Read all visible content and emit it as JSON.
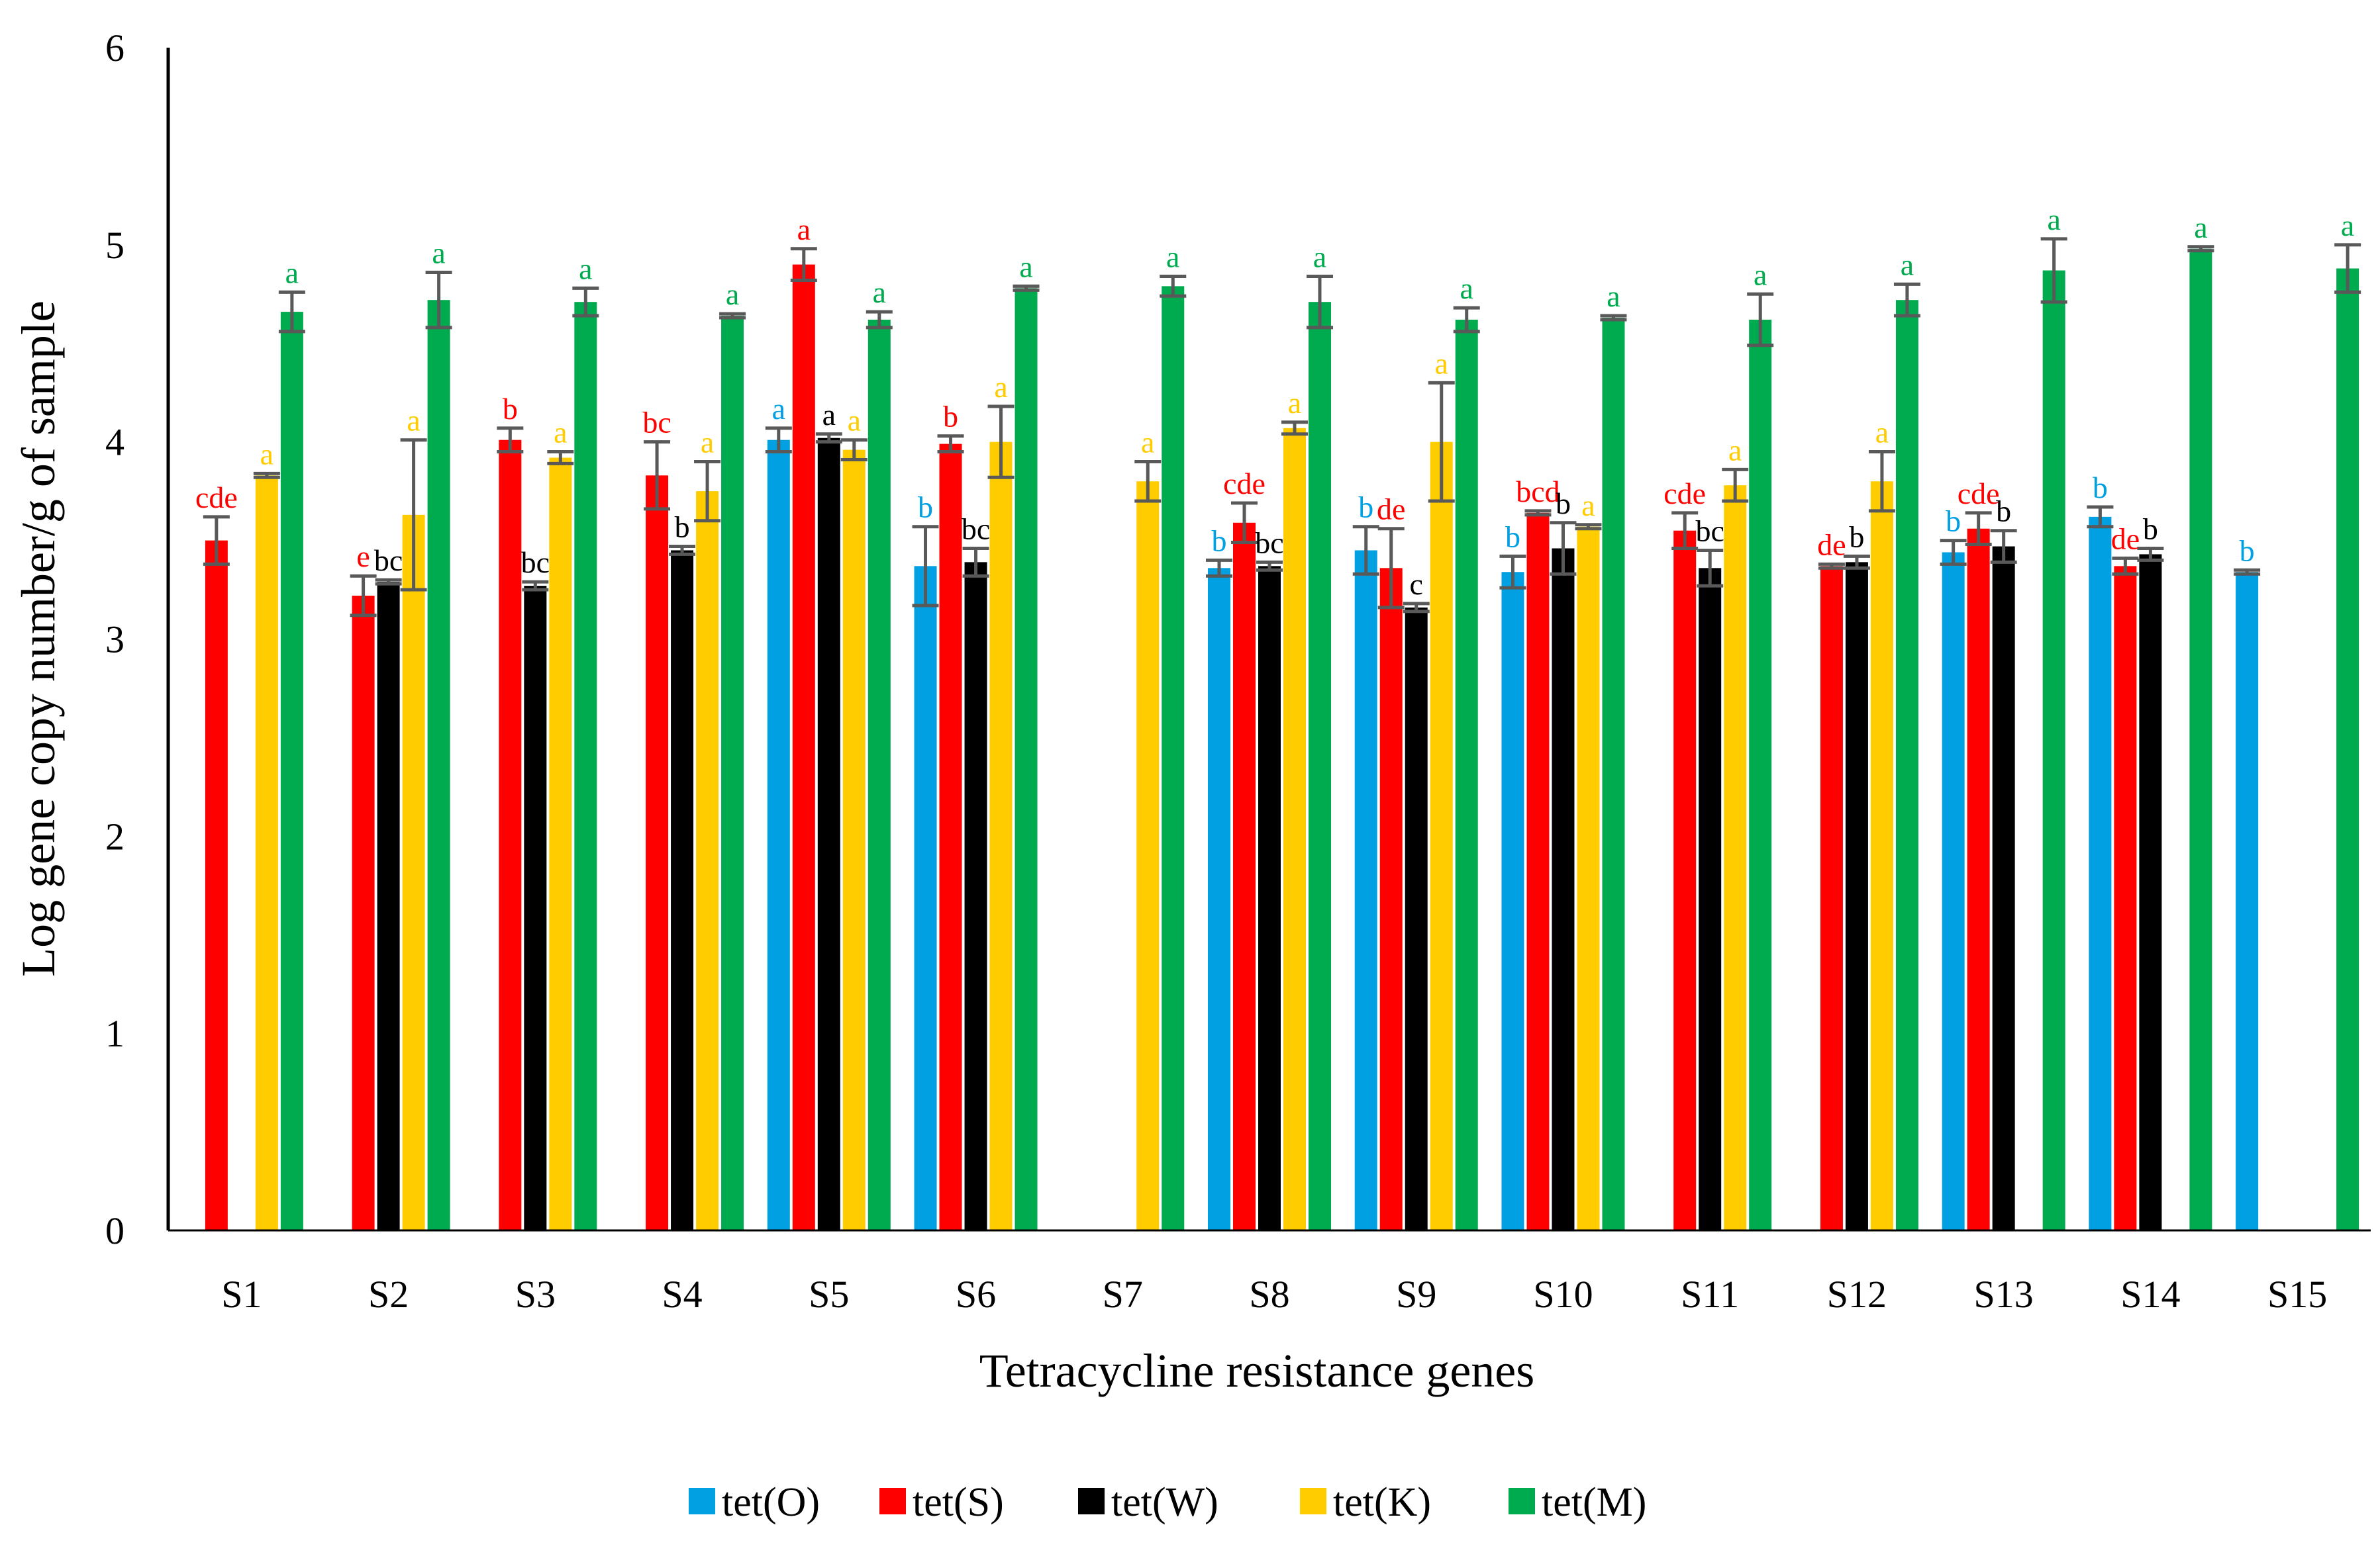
{
  "chart_data": {
    "type": "bar",
    "title": "",
    "xlabel": "Tetracycline resistance genes",
    "ylabel": "Log gene copy number/g of sample",
    "ylim": [
      0,
      6
    ],
    "yticks": [
      "0",
      "1",
      "2",
      "3",
      "4",
      "5",
      "6"
    ],
    "grid": false,
    "legend_position": "bottom",
    "categories": [
      "S1",
      "S2",
      "S3",
      "S4",
      "S5",
      "S6",
      "S7",
      "S8",
      "S9",
      "S10",
      "S11",
      "S12",
      "S13",
      "S14",
      "S15"
    ],
    "series": [
      {
        "name": "tet(O)",
        "color": "#00A0E3",
        "values": [
          null,
          null,
          null,
          null,
          4.01,
          3.37,
          null,
          3.36,
          3.45,
          3.34,
          null,
          null,
          3.44,
          3.62,
          3.34
        ],
        "errors": [
          null,
          null,
          null,
          null,
          0.06,
          0.2,
          null,
          0.04,
          0.12,
          0.08,
          null,
          null,
          0.06,
          0.05,
          0.01
        ],
        "sig_labels": [
          "",
          "",
          "",
          "",
          "a",
          "b",
          "",
          "b",
          "b",
          "b",
          "",
          "",
          "b",
          "b",
          "b"
        ]
      },
      {
        "name": "tet(S)",
        "color": "#FF0000",
        "values": [
          3.5,
          3.22,
          4.01,
          3.83,
          4.9,
          3.99,
          null,
          3.59,
          3.36,
          3.64,
          3.55,
          3.37,
          3.56,
          3.37,
          null
        ],
        "errors": [
          0.12,
          0.1,
          0.06,
          0.17,
          0.08,
          0.04,
          null,
          0.1,
          0.2,
          0.01,
          0.09,
          0.01,
          0.08,
          0.04,
          null
        ],
        "sig_labels": [
          "cde",
          "e",
          "b",
          "bc",
          "a",
          "b",
          "",
          "cde",
          "de",
          "bcd",
          "cde",
          "de",
          "cde",
          "de",
          ""
        ]
      },
      {
        "name": "tet(W)",
        "color": "#000000",
        "values": [
          null,
          3.29,
          3.27,
          3.45,
          4.02,
          3.39,
          null,
          3.37,
          3.16,
          3.46,
          3.36,
          3.39,
          3.47,
          3.43,
          null
        ],
        "errors": [
          null,
          0.01,
          0.02,
          0.02,
          0.02,
          0.07,
          null,
          0.02,
          0.02,
          0.13,
          0.09,
          0.03,
          0.08,
          0.03,
          null
        ],
        "sig_labels": [
          "",
          "bc",
          "bc",
          "b",
          "a",
          "bc",
          "",
          "bc",
          "c",
          "b",
          "bc",
          "b",
          "b",
          "b",
          ""
        ]
      },
      {
        "name": "tet(K)",
        "color": "#FFCC00",
        "values": [
          3.83,
          3.63,
          3.92,
          3.75,
          3.96,
          4.0,
          3.8,
          4.07,
          4.0,
          3.57,
          3.78,
          3.8,
          null,
          null,
          null
        ],
        "errors": [
          0.01,
          0.38,
          0.03,
          0.15,
          0.05,
          0.18,
          0.1,
          0.03,
          0.3,
          0.01,
          0.08,
          0.15,
          null,
          null,
          null
        ],
        "sig_labels": [
          "a",
          "a",
          "a",
          "a",
          "a",
          "a",
          "a",
          "a",
          "a",
          "a",
          "a",
          "a",
          "",
          "",
          ""
        ]
      },
      {
        "name": "tet(M)",
        "color": "#00AA4F",
        "values": [
          4.66,
          4.72,
          4.71,
          4.64,
          4.62,
          4.78,
          4.79,
          4.71,
          4.62,
          4.63,
          4.62,
          4.72,
          4.87,
          4.98,
          4.88
        ],
        "errors": [
          0.1,
          0.14,
          0.07,
          0.01,
          0.04,
          0.01,
          0.05,
          0.13,
          0.06,
          0.01,
          0.13,
          0.08,
          0.16,
          0.01,
          0.12
        ],
        "sig_labels": [
          "a",
          "a",
          "a",
          "a",
          "a",
          "a",
          "a",
          "a",
          "a",
          "a",
          "a",
          "a",
          "a",
          "a",
          "a"
        ]
      }
    ]
  }
}
